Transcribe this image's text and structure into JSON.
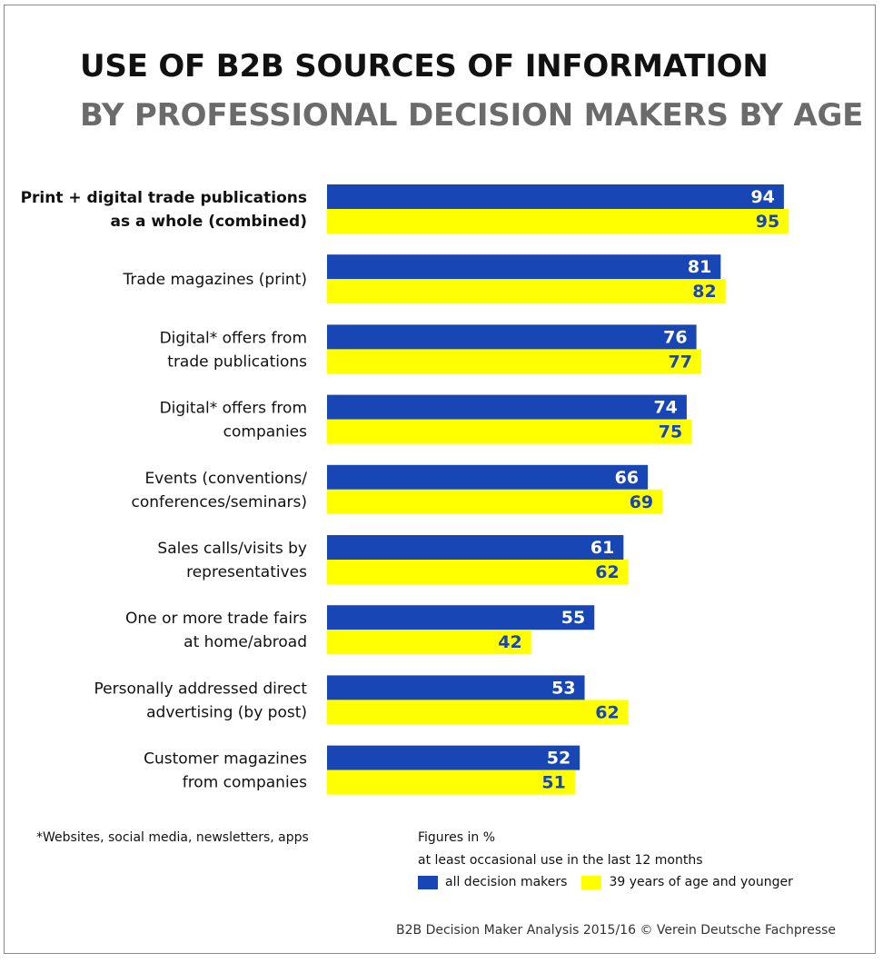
{
  "title": "USE OF B2B SOURCES OF INFORMATION",
  "subtitle": "BY PROFESSIONAL DECISION MAKERS BY AGE",
  "footnote": "*Websites, social media, newsletters, apps",
  "figures_note": "Figures in %",
  "usage_note": "at least occasional use in the last 12 months",
  "source": "B2B Decision Maker Analysis 2015/16 © Verein Deutsche Fachpresse",
  "colors": {
    "all": "#1846b4",
    "young": "#ffff00",
    "label_on_all": "#ffffff",
    "label_on_young": "#1846b4"
  },
  "chart_data": {
    "type": "bar",
    "orientation": "horizontal",
    "title": "USE OF B2B SOURCES OF INFORMATION",
    "subtitle": "BY PROFESSIONAL DECISION MAKERS BY AGE",
    "categories": [
      [
        "Print + digital trade publications",
        "as a whole (combined)"
      ],
      [
        "Trade magazines (print)"
      ],
      [
        "Digital* offers from",
        "trade publications"
      ],
      [
        "Digital* offers from",
        "companies"
      ],
      [
        "Events (conventions/",
        "conferences/seminars)"
      ],
      [
        "Sales calls/visits by",
        "representatives"
      ],
      [
        "One or more trade fairs",
        "at home/abroad"
      ],
      [
        "Personally addressed direct",
        "advertising (by post)"
      ],
      [
        "Customer magazines",
        "from companies"
      ]
    ],
    "highlight_category_index": 0,
    "series": [
      {
        "name": "all decision makers",
        "values": [
          94,
          81,
          76,
          74,
          66,
          61,
          55,
          53,
          52
        ]
      },
      {
        "name": "39 years of age and younger",
        "values": [
          95,
          82,
          77,
          75,
          69,
          62,
          42,
          62,
          51
        ]
      }
    ],
    "xlim": [
      0,
      100
    ],
    "unit": "%",
    "legend_position": "bottom-right",
    "grid": false
  }
}
